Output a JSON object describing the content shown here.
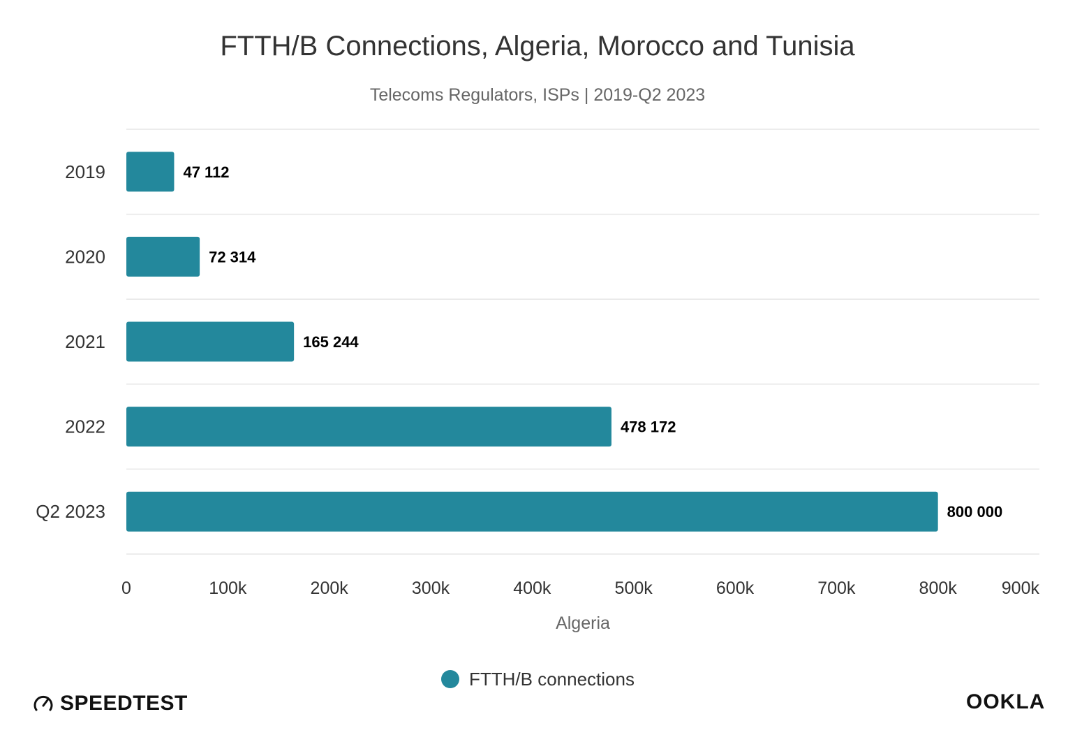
{
  "chart_data": {
    "type": "bar",
    "orientation": "horizontal",
    "title": "FTTH/B Connections, Algeria, Morocco and Tunisia",
    "subtitle": "Telecoms Regulators, ISPs | 2019-Q2 2023",
    "categories": [
      "2019",
      "2020",
      "2021",
      "2022",
      "Q2 2023"
    ],
    "values": [
      47112,
      72314,
      165244,
      478172,
      800000
    ],
    "data_labels": [
      "47 112",
      "72 314",
      "165 244",
      "478 172",
      "800 000"
    ],
    "series": [
      {
        "name": "FTTH/B connections",
        "values": [
          47112,
          72314,
          165244,
          478172,
          800000
        ]
      }
    ],
    "xlabel": "Algeria",
    "ylabel": "",
    "xlim": [
      0,
      900000
    ],
    "x_ticks": [
      0,
      100000,
      200000,
      300000,
      400000,
      500000,
      600000,
      700000,
      800000,
      900000
    ],
    "x_tick_labels": [
      "0",
      "100k",
      "200k",
      "300k",
      "400k",
      "500k",
      "600k",
      "700k",
      "800k",
      "900k"
    ],
    "grid": true,
    "legend_position": "bottom-center",
    "bar_color": "#23889c"
  },
  "branding": {
    "left_logo": "SPEEDTEST",
    "left_icon": "speedometer-icon",
    "right_logo": "OOKLA"
  }
}
